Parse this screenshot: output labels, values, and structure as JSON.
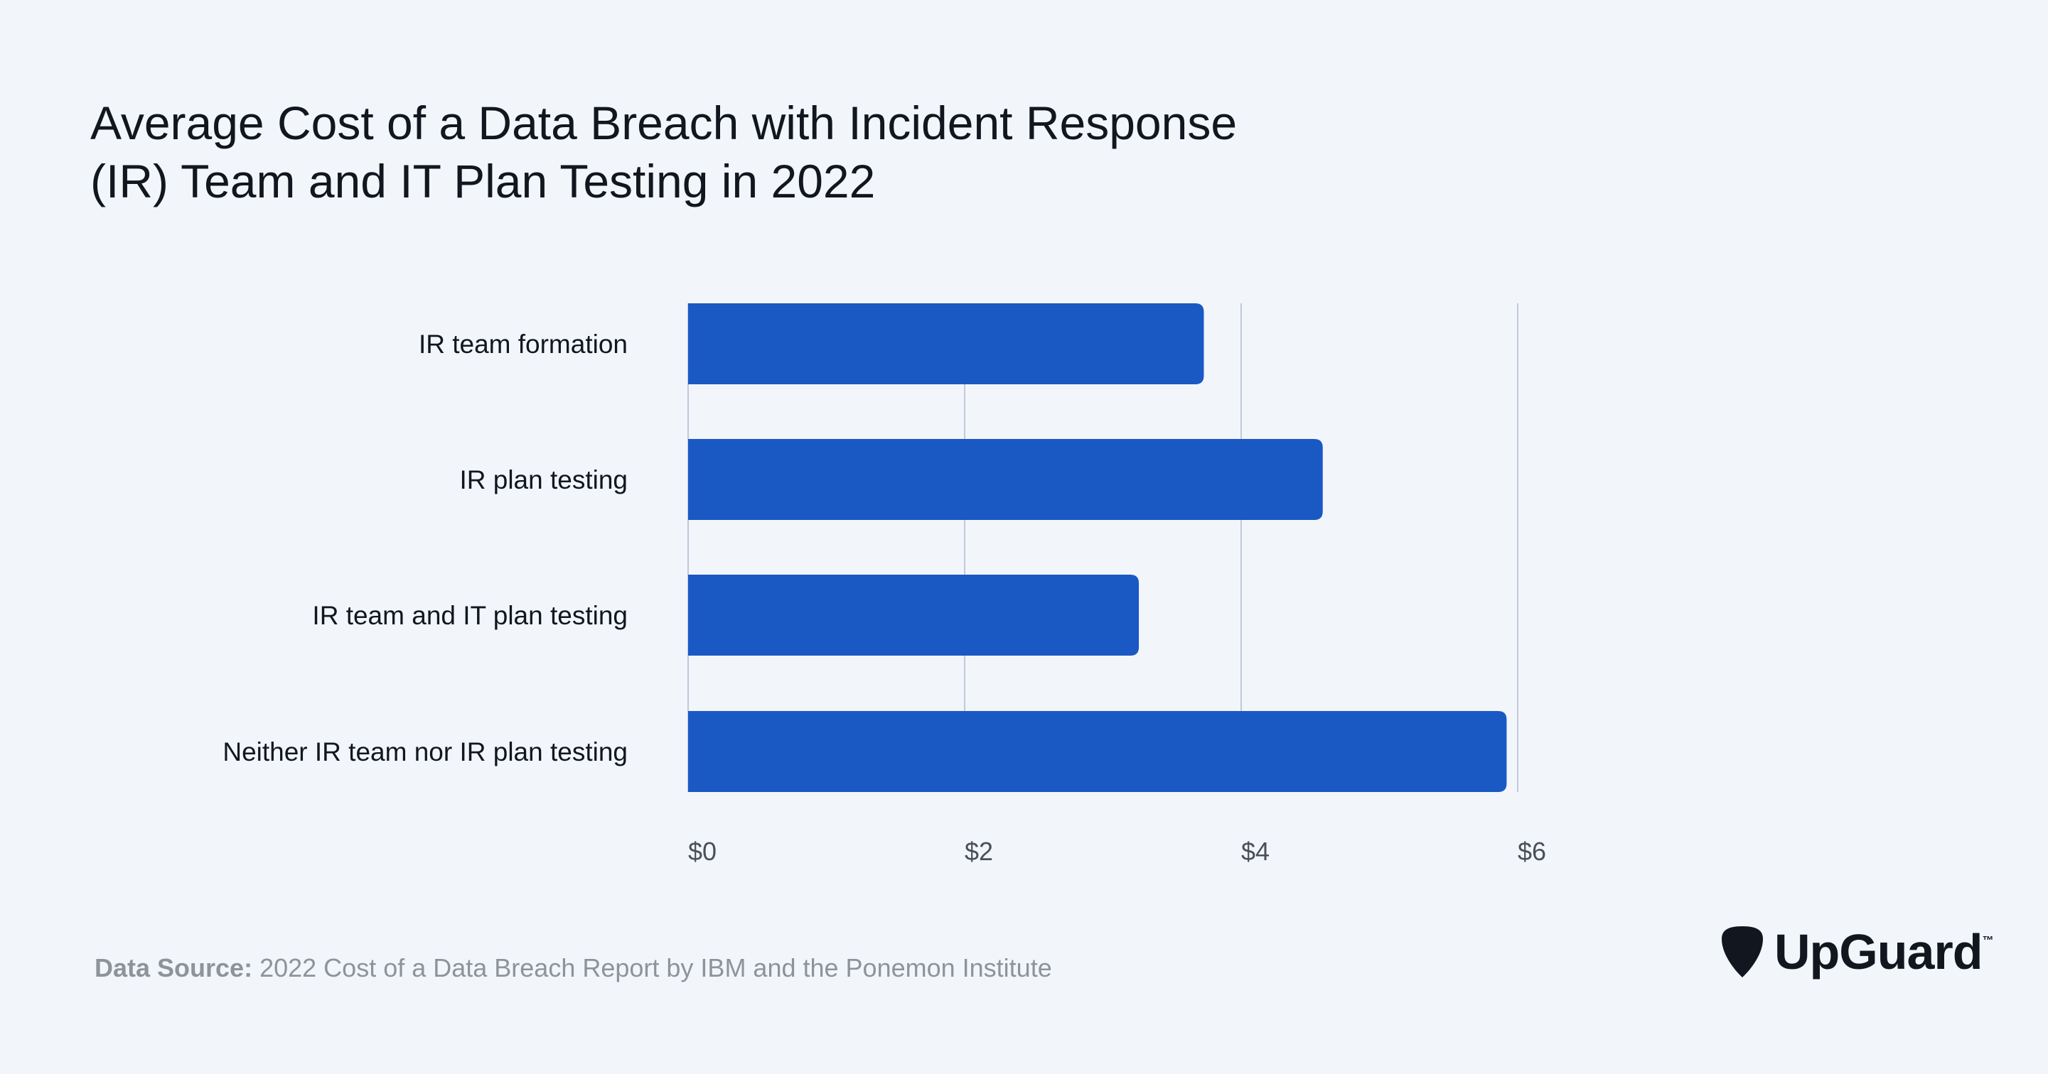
{
  "chart_data": {
    "type": "bar",
    "orientation": "horizontal",
    "title_lines": [
      "Average Cost of a Data Breach with Incident Response",
      "(IR) Team and IT Plan Testing in 2022"
    ],
    "categories": [
      "IR team formation",
      "IR plan testing",
      "IR team and IT plan testing",
      "Neither IR team nor IR plan testing"
    ],
    "values": [
      3.73,
      4.59,
      3.26,
      5.92
    ],
    "xlim": [
      0,
      6
    ],
    "x_ticks": [
      0,
      2,
      4,
      6
    ],
    "x_tick_labels": [
      "$0",
      "$2",
      "$4",
      "$6"
    ],
    "grid": "vertical",
    "bar_color": "#1a58c4",
    "grid_color": "#c2c8dc",
    "label_color": "#12161e",
    "tick_label_color": "#4a4f58"
  },
  "footer": {
    "source_label": "Data Source:",
    "source_text": " 2022 Cost of a Data Breach Report by IBM and the Ponemon Institute"
  },
  "brand": {
    "name": "UpGuard",
    "tm": "™",
    "icon": "guitar-pick-shield-icon"
  }
}
